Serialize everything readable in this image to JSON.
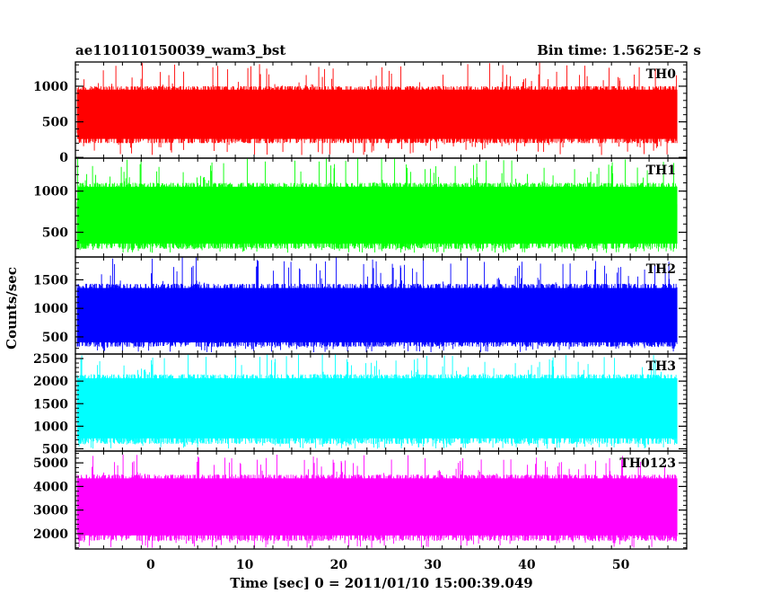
{
  "chart_data": {
    "type": "line",
    "title": "ae110110150039_wam3_bst",
    "subtitle": "Bin time: 1.5625E-2 s",
    "xlabel": "Time [sec] 0 = 2011/01/10 15:00:39.049",
    "ylabel": "Counts/sec",
    "xlim": [
      -8,
      57
    ],
    "data_range": [
      -7.8,
      56.0
    ],
    "x_ticks": [
      0,
      10,
      20,
      30,
      40,
      50
    ],
    "grid": false,
    "panels": [
      {
        "name": "TH0",
        "color": "#ff0000",
        "ylim": [
          -10,
          1340
        ],
        "y_ticks": [
          0,
          500,
          1000
        ],
        "envelope": {
          "min": 30,
          "low": 200,
          "center": 600,
          "high": 1000,
          "max": 1340
        }
      },
      {
        "name": "TH1",
        "color": "#00ff00",
        "ylim": [
          200,
          1400
        ],
        "y_ticks": [
          500,
          1000
        ],
        "envelope": {
          "min": 250,
          "low": 300,
          "center": 710,
          "high": 1100,
          "max": 1400
        }
      },
      {
        "name": "TH2",
        "color": "#0000ff",
        "ylim": [
          200,
          1900
        ],
        "y_ticks": [
          500,
          1000,
          1500
        ],
        "envelope": {
          "min": 230,
          "low": 330,
          "center": 820,
          "high": 1430,
          "max": 1900
        }
      },
      {
        "name": "TH3",
        "color": "#00ffff",
        "ylim": [
          450,
          2600
        ],
        "y_ticks": [
          500,
          1000,
          1500,
          2000,
          2500
        ],
        "envelope": {
          "min": 500,
          "low": 610,
          "center": 1420,
          "high": 2150,
          "max": 2600
        }
      },
      {
        "name": "TH0123",
        "color": "#ff00ff",
        "ylim": [
          1350,
          5500
        ],
        "y_ticks": [
          2000,
          3000,
          4000,
          5000
        ],
        "envelope": {
          "min": 1400,
          "low": 1700,
          "center": 3200,
          "high": 4500,
          "max": 5350
        }
      }
    ]
  }
}
